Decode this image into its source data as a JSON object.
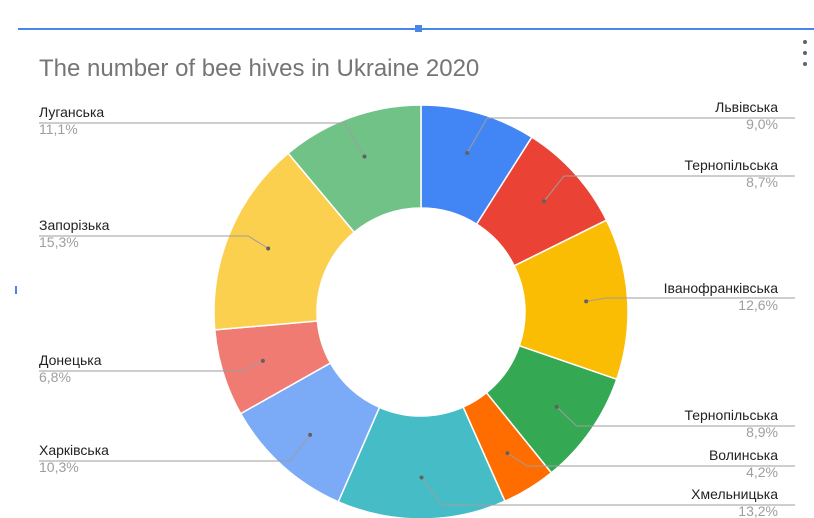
{
  "title": "The number of bee hives in Ukraine 2020",
  "menu_icon": "more-vert-icon",
  "chart_data": {
    "type": "pie",
    "donut": true,
    "title": "The number of bee hives in Ukraine 2020",
    "legend": "labels",
    "slices": [
      {
        "label": "Львівська",
        "value": 9.0,
        "percent_label": "9,0%",
        "color": "#4285f4"
      },
      {
        "label": "Тернопільська",
        "value": 8.7,
        "percent_label": "8,7%",
        "color": "#ea4335"
      },
      {
        "label": "Іванофранківська",
        "value": 12.6,
        "percent_label": "12,6%",
        "color": "#fbbc04"
      },
      {
        "label": "Тернопільська",
        "value": 8.9,
        "percent_label": "8,9%",
        "color": "#34a853"
      },
      {
        "label": "Волинська",
        "value": 4.2,
        "percent_label": "4,2%",
        "color": "#ff6d01"
      },
      {
        "label": "Хмельницька",
        "value": 13.2,
        "percent_label": "13,2%",
        "color": "#46bdc6"
      },
      {
        "label": "Харківська",
        "value": 10.3,
        "percent_label": "10,3%",
        "color": "#7baaf7"
      },
      {
        "label": "Донецька",
        "value": 6.8,
        "percent_label": "6,8%",
        "color": "#f07b72"
      },
      {
        "label": "Запорізька",
        "value": 15.3,
        "percent_label": "15,3%",
        "color": "#fcd04f"
      },
      {
        "label": "Луганська",
        "value": 11.1,
        "percent_label": "11,1%",
        "color": "#71c287"
      }
    ]
  }
}
